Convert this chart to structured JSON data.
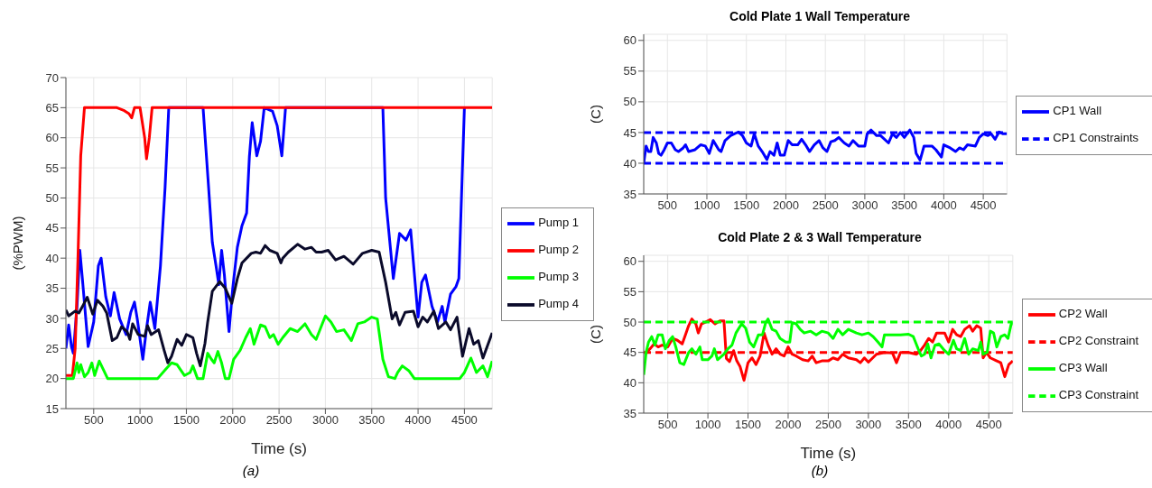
{
  "chart_data": [
    {
      "type": "line",
      "xlabel": "Time (s)",
      "ylabel": "(%PWM)",
      "annotations": [
        "(a)"
      ],
      "xlim": [
        200,
        4800
      ],
      "xticks": [
        500,
        1000,
        1500,
        2000,
        2500,
        3000,
        3500,
        4000,
        4500
      ],
      "ylim": [
        15,
        70
      ],
      "yticks": [
        15,
        20,
        25,
        30,
        35,
        40,
        45,
        50,
        55,
        60,
        65,
        70
      ],
      "grid": true,
      "legend": "right",
      "marker": "none",
      "series": [
        {
          "name": "Pump 1",
          "color": "#0000ff",
          "x": [
            200,
            230,
            260,
            280,
            320,
            350,
            380,
            440,
            500,
            550,
            580,
            630,
            680,
            720,
            780,
            850,
            900,
            940,
            970,
            1030,
            1070,
            1110,
            1160,
            1220,
            1270,
            1310,
            1680,
            1740,
            1780,
            1820,
            1850,
            1880,
            1910,
            1960,
            2000,
            2050,
            2100,
            2150,
            2180,
            2210,
            2260,
            2300,
            2340,
            2430,
            2480,
            2530,
            2570,
            3620,
            3650,
            3733,
            3800,
            3870,
            3920,
            4000,
            4040,
            4080,
            4150,
            4210,
            4260,
            4290,
            4350,
            4410,
            4440,
            4500
          ],
          "values": [
            25,
            28.9,
            25.3,
            24.2,
            32,
            41.3,
            36.2,
            25.3,
            29.4,
            38.7,
            40,
            33.6,
            30.4,
            34.3,
            29.9,
            27.3,
            31,
            32.7,
            29.9,
            23.2,
            28.3,
            32.7,
            28.3,
            38.7,
            51.7,
            65,
            65,
            51.7,
            42.6,
            38.7,
            35.6,
            41.3,
            37.2,
            27.8,
            35,
            41.8,
            45.4,
            47.5,
            56.9,
            62.5,
            57,
            59.4,
            65,
            64.4,
            62,
            57,
            65,
            65,
            50,
            36.6,
            44.1,
            43,
            44.7,
            30.2,
            36,
            37.2,
            32,
            29.4,
            32,
            29.4,
            34,
            35.3,
            36.6,
            65
          ]
        },
        {
          "name": "Pump 2",
          "color": "#ff0000",
          "x": [
            200,
            270,
            300,
            330,
            360,
            400,
            750,
            830,
            880,
            910,
            940,
            1000,
            1050,
            1070,
            1100,
            1130,
            4800
          ],
          "values": [
            20.5,
            20.5,
            25,
            40,
            57,
            65,
            65,
            64.5,
            64,
            63.3,
            65,
            65,
            60,
            56.5,
            60,
            65,
            65
          ]
        },
        {
          "name": "Pump 3",
          "color": "#00ff00",
          "x": [
            200,
            280,
            320,
            340,
            360,
            400,
            440,
            480,
            510,
            560,
            600,
            650,
            1190,
            1280,
            1340,
            1400,
            1480,
            1540,
            1570,
            1620,
            1680,
            1730,
            1770,
            1800,
            1840,
            1880,
            1920,
            1960,
            2010,
            2080,
            2140,
            2190,
            2230,
            2300,
            2350,
            2400,
            2440,
            2490,
            2540,
            2620,
            2700,
            2780,
            2850,
            2900,
            3000,
            3060,
            3120,
            3200,
            3280,
            3350,
            3420,
            3500,
            3560,
            3620,
            3680,
            3750,
            3780,
            3830,
            3900,
            3960,
            4450,
            4500,
            4570,
            4630,
            4700,
            4750,
            4800
          ],
          "values": [
            20,
            20,
            22.6,
            21,
            22.3,
            20.3,
            21,
            22.6,
            20.5,
            22.9,
            21.6,
            20,
            20,
            21.6,
            22.6,
            22.3,
            20.5,
            21,
            22.1,
            20,
            20,
            24.2,
            23.2,
            22.6,
            24.5,
            22.6,
            20,
            20,
            23.2,
            24.7,
            26.8,
            28.3,
            25.7,
            28.9,
            28.6,
            26.8,
            27.3,
            25.7,
            26.8,
            28.3,
            27.8,
            29.1,
            27.3,
            26.5,
            30.4,
            29.4,
            27.8,
            28.1,
            26.3,
            29.1,
            29.4,
            30.2,
            29.9,
            23.2,
            20.3,
            20,
            21,
            22.1,
            21.3,
            20,
            20,
            21,
            23.4,
            21,
            22.1,
            20.3,
            22.9
          ]
        },
        {
          "name": "Pump 4",
          "color": "#0a0a2a",
          "x": [
            200,
            230,
            300,
            340,
            380,
            430,
            490,
            540,
            600,
            640,
            700,
            750,
            800,
            860,
            890,
            920,
            980,
            1050,
            1080,
            1120,
            1200,
            1260,
            1300,
            1340,
            1400,
            1450,
            1500,
            1570,
            1610,
            1650,
            1700,
            1730,
            1780,
            1860,
            1920,
            1990,
            2050,
            2100,
            2200,
            2250,
            2300,
            2350,
            2400,
            2480,
            2520,
            2540,
            2600,
            2700,
            2780,
            2850,
            2900,
            2960,
            3030,
            3110,
            3200,
            3300,
            3400,
            3500,
            3580,
            3650,
            3720,
            3760,
            3800,
            3860,
            3950,
            4000,
            4050,
            4100,
            4170,
            4220,
            4300,
            4350,
            4420,
            4480,
            4550,
            4600,
            4650,
            4700,
            4750,
            4800
          ],
          "values": [
            31.4,
            30.4,
            31.2,
            30.9,
            32,
            33.5,
            30.7,
            33,
            32,
            30.9,
            26.3,
            26.8,
            28.6,
            27.8,
            26.5,
            29.1,
            27.3,
            27,
            28.8,
            27.3,
            28.1,
            24.7,
            22.6,
            23.7,
            26.5,
            25.5,
            27.3,
            26.8,
            24.2,
            22.1,
            25.8,
            29.4,
            34.5,
            36.1,
            35,
            32.5,
            36.6,
            39.2,
            40.8,
            41,
            40.8,
            42.1,
            41.3,
            40.8,
            39.2,
            40,
            41,
            42.3,
            41.5,
            41.8,
            41,
            41,
            41.3,
            39.7,
            40.3,
            39,
            40.8,
            41.3,
            41,
            36,
            29.9,
            31,
            28.9,
            31,
            31.2,
            28.6,
            30.2,
            29.4,
            31.2,
            28.3,
            29.4,
            28.1,
            30.2,
            23.7,
            28.3,
            25.7,
            26.3,
            23.4,
            25.5,
            27.6
          ]
        }
      ]
    },
    {
      "type": "line",
      "title": "Cold Plate 1 Wall Temperature",
      "ylabel": "(C)",
      "xlim": [
        200,
        4800
      ],
      "xticks": [
        500,
        1000,
        1500,
        2000,
        2500,
        3000,
        3500,
        4000,
        4500
      ],
      "ylim": [
        35,
        61
      ],
      "yticks": [
        35,
        40,
        45,
        50,
        55,
        60
      ],
      "grid": true,
      "legend": "right",
      "marker": "none",
      "series": [
        {
          "name": "CP1 Wall",
          "color": "#0000ff",
          "x": [
            200,
            230,
            260,
            290,
            320,
            360,
            390,
            420,
            460,
            500,
            550,
            600,
            640,
            700,
            730,
            770,
            850,
            920,
            980,
            1030,
            1080,
            1150,
            1180,
            1230,
            1300,
            1400,
            1450,
            1500,
            1560,
            1600,
            1650,
            1700,
            1760,
            1800,
            1850,
            1890,
            1930,
            1980,
            2030,
            2080,
            2150,
            2200,
            2250,
            2300,
            2360,
            2420,
            2470,
            2520,
            2570,
            2620,
            2670,
            2740,
            2800,
            2850,
            2920,
            3000,
            3030,
            3080,
            3150,
            3200,
            3300,
            3350,
            3400,
            3450,
            3500,
            3570,
            3620,
            3650,
            3700,
            3750,
            3800,
            3850,
            3900,
            3970,
            4000,
            4080,
            4150,
            4200,
            4250,
            4300,
            4400,
            4450,
            4500,
            4560,
            4600,
            4650,
            4700,
            4750,
            4800
          ],
          "values": [
            40,
            42.8,
            41.9,
            41.9,
            44.2,
            43.3,
            41.6,
            41.3,
            42.2,
            43.3,
            43.3,
            42.2,
            41.9,
            42.5,
            43,
            41.9,
            42.2,
            43,
            42.8,
            41.6,
            43.7,
            42.2,
            41.9,
            43.7,
            44.5,
            45.1,
            44.5,
            43.3,
            42.8,
            44.8,
            42.8,
            41.9,
            40.6,
            41.9,
            41.3,
            43.3,
            41.3,
            41.3,
            43.7,
            43,
            43,
            43.9,
            43,
            41.9,
            43,
            43.7,
            42.5,
            41.9,
            43.5,
            43.7,
            44.2,
            43.3,
            42.8,
            43.7,
            42.8,
            42.8,
            44.8,
            45.4,
            44.5,
            44.5,
            43.3,
            44.8,
            44.2,
            45,
            44.2,
            45.4,
            44.2,
            41.6,
            40.5,
            42.8,
            42.8,
            42.8,
            42.2,
            41,
            43,
            42.5,
            41.9,
            42.5,
            42.2,
            43,
            42.8,
            44.2,
            44.8,
            44.5,
            44.8,
            43.9,
            45.1,
            44.8,
            44.8
          ]
        },
        {
          "name": "CP1 Constraints",
          "color": "#0000ff",
          "line_style": "dashed",
          "x": [
            200,
            4800
          ],
          "values": [
            45,
            45
          ]
        },
        {
          "color": "#0000ff",
          "line_style": "dashed",
          "x": [
            200,
            4800
          ],
          "values": [
            40,
            40
          ]
        }
      ]
    },
    {
      "type": "line",
      "title": "Cold Plate 2 & 3 Wall Temperature",
      "xlabel": "Time (s)",
      "ylabel": "(C)",
      "annotations": [
        "(b)"
      ],
      "xlim": [
        200,
        4800
      ],
      "xticks": [
        500,
        1000,
        1500,
        2000,
        2500,
        3000,
        3500,
        4000,
        4500
      ],
      "ylim": [
        35,
        61
      ],
      "yticks": [
        35,
        40,
        45,
        50,
        55,
        60
      ],
      "grid": true,
      "legend": "right",
      "marker": "none",
      "series": [
        {
          "name": "CP2 Wall",
          "color": "#ff0000",
          "x": [
            230,
            280,
            330,
            380,
            430,
            500,
            560,
            620,
            680,
            720,
            760,
            800,
            850,
            880,
            920,
            970,
            1030,
            1090,
            1150,
            1200,
            1230,
            1270,
            1320,
            1360,
            1400,
            1450,
            1500,
            1550,
            1600,
            1650,
            1700,
            1750,
            1800,
            1850,
            1900,
            1950,
            2000,
            2050,
            2100,
            2180,
            2250,
            2300,
            2350,
            2420,
            2500,
            2560,
            2620,
            2680,
            2750,
            2850,
            2900,
            2950,
            3000,
            3100,
            3200,
            3300,
            3350,
            3400,
            3500,
            3600,
            3650,
            3700,
            3750,
            3800,
            3850,
            3950,
            4000,
            4050,
            4100,
            4150,
            4200,
            4260,
            4300,
            4350,
            4400,
            4430,
            4470,
            4520,
            4600,
            4650,
            4700,
            4750,
            4800
          ],
          "values": [
            45,
            45.6,
            46.4,
            45.9,
            46.2,
            45.9,
            47.3,
            47,
            46.4,
            47.9,
            49.4,
            50.5,
            49.7,
            48.2,
            49.7,
            50,
            50.4,
            49.7,
            50.2,
            50.2,
            44,
            43.5,
            45.3,
            43.6,
            42.7,
            40.4,
            43.3,
            44.1,
            43,
            44.4,
            48.2,
            46.2,
            44.7,
            45.6,
            44.7,
            44.4,
            45.9,
            44.7,
            44.4,
            43.8,
            43.6,
            44.4,
            43.3,
            43.6,
            43.6,
            44.1,
            43.8,
            44.7,
            44.1,
            43.8,
            43.3,
            44.1,
            43.4,
            44.7,
            45,
            44.9,
            43.3,
            45,
            45,
            44.7,
            45.3,
            46.2,
            47.3,
            46.7,
            48.2,
            48.2,
            46.7,
            48.8,
            47.9,
            47.6,
            48.8,
            49.4,
            48.5,
            49.4,
            49,
            44.1,
            45,
            44.1,
            43.6,
            43.3,
            41,
            43,
            43.6
          ]
        },
        {
          "name": "CP2 Constraint",
          "color": "#ff0000",
          "line_style": "dashed",
          "x": [
            200,
            4800
          ],
          "values": [
            45,
            45
          ]
        },
        {
          "name": "CP3 Wall",
          "color": "#00ff00",
          "x": [
            200,
            230,
            260,
            300,
            340,
            380,
            430,
            470,
            520,
            560,
            600,
            650,
            700,
            760,
            800,
            850,
            900,
            930,
            1000,
            1050,
            1080,
            1120,
            1200,
            1250,
            1300,
            1350,
            1420,
            1470,
            1520,
            1570,
            1630,
            1680,
            1720,
            1750,
            1800,
            1850,
            1900,
            1970,
            2020,
            2050,
            2100,
            2150,
            2200,
            2280,
            2350,
            2420,
            2500,
            2560,
            2620,
            2680,
            2750,
            2850,
            2920,
            3000,
            3060,
            3120,
            3170,
            3200,
            3300,
            3400,
            3500,
            3560,
            3620,
            3660,
            3700,
            3740,
            3780,
            3830,
            3880,
            3950,
            4000,
            4060,
            4100,
            4150,
            4200,
            4250,
            4300,
            4370,
            4400,
            4430,
            4480,
            4520,
            4560,
            4600,
            4650,
            4700,
            4740,
            4780,
            4800
          ],
          "values": [
            41.3,
            45,
            46.7,
            47.6,
            46.2,
            47.9,
            47.9,
            45.6,
            47,
            47.6,
            45.9,
            43.3,
            43,
            45,
            45.6,
            44.7,
            45.9,
            43.8,
            43.8,
            44.4,
            45.6,
            43.8,
            44.7,
            45.6,
            46.2,
            48.2,
            49.7,
            49,
            46.7,
            45.9,
            47.9,
            47.9,
            49.9,
            50.5,
            48.8,
            48.5,
            47.3,
            46.7,
            46.7,
            49.9,
            49.7,
            48.8,
            48.2,
            48.5,
            47.9,
            48.5,
            48.2,
            47.3,
            48.8,
            47.9,
            48.8,
            48.2,
            47.9,
            48.2,
            47.6,
            46.7,
            45.9,
            47.9,
            47.9,
            47.9,
            48,
            47.6,
            45.6,
            44.4,
            44.7,
            46.4,
            44.1,
            46.2,
            46.4,
            45.3,
            44.7,
            47,
            45.6,
            45.3,
            47.3,
            44.7,
            45.6,
            45.3,
            46.7,
            44.7,
            45,
            48.5,
            48.2,
            45.9,
            47.6,
            47.9,
            47.3,
            49.7,
            49.7
          ]
        },
        {
          "name": "CP3 Constraint",
          "color": "#00ff00",
          "line_style": "dashed",
          "x": [
            200,
            4800
          ],
          "values": [
            50,
            50
          ]
        }
      ]
    }
  ]
}
